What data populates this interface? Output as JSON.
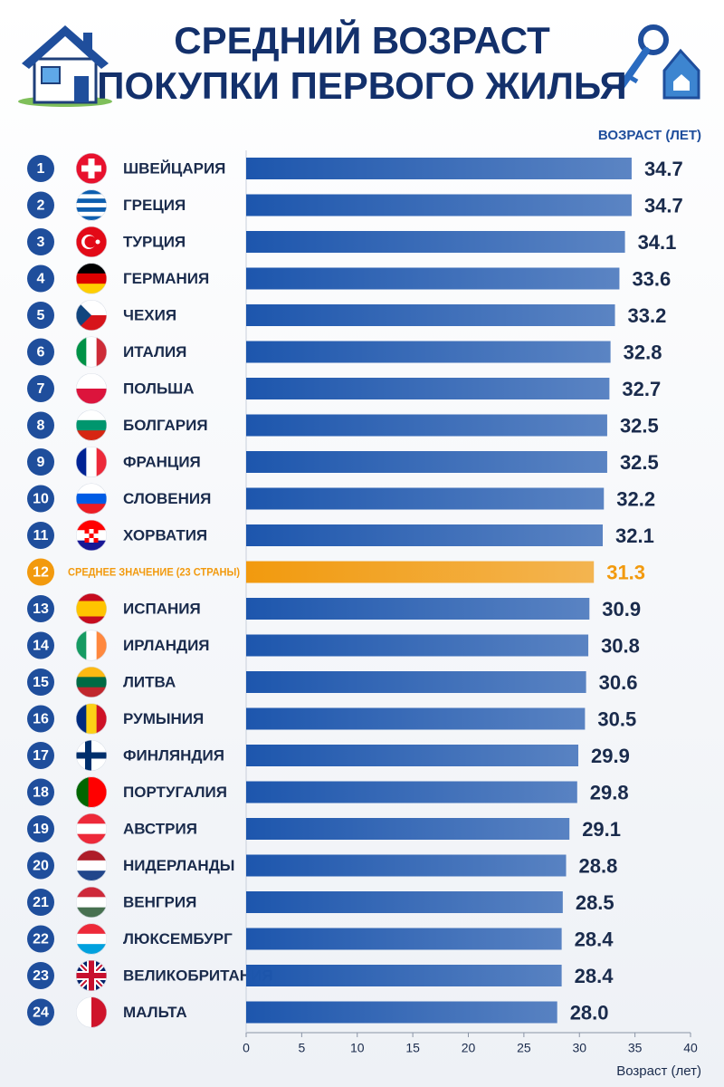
{
  "chart_data": {
    "type": "bar",
    "title": [
      "СРЕДНИЙ ВОЗРАСТ",
      "ПОКУПКИ ПЕРВОГО ЖИЛЬЯ"
    ],
    "value_axis_title": "ВОЗРАСТ (ЛЕТ)",
    "x_label": "Возраст (лет)",
    "ranks": [
      1,
      2,
      3,
      4,
      5,
      6,
      7,
      8,
      9,
      10,
      11,
      12,
      13,
      14,
      15,
      16,
      17,
      18,
      19,
      20,
      21,
      22,
      23,
      24
    ],
    "categories": [
      "ШВЕЙЦАРИЯ",
      "ГРЕЦИЯ",
      "ТУРЦИЯ",
      "ГЕРМАНИЯ",
      "ЧЕХИЯ",
      "ИТАЛИЯ",
      "ПОЛЬША",
      "БОЛГАРИЯ",
      "ФРАНЦИЯ",
      "СЛОВЕНИЯ",
      "ХОРВАТИЯ",
      "СРЕДНЕЕ ЗНАЧЕНИЕ (23 СТРАНЫ)",
      "ИСПАНИЯ",
      "ИРЛАНДИЯ",
      "ЛИТВА",
      "РУМЫНИЯ",
      "ФИНЛЯНДИЯ",
      "ПОРТУГАЛИЯ",
      "АВСТРИЯ",
      "НИДЕРЛАНДЫ",
      "ВЕНГРИЯ",
      "ЛЮКСЕМБУРГ",
      "ВЕЛИКОБРИТАНИЯ",
      "МАЛЬТА"
    ],
    "values": [
      34.7,
      34.7,
      34.1,
      33.6,
      33.2,
      32.8,
      32.7,
      32.5,
      32.5,
      32.2,
      32.1,
      31.3,
      30.9,
      30.8,
      30.6,
      30.5,
      29.9,
      29.8,
      29.1,
      28.8,
      28.5,
      28.4,
      28.4,
      28.0
    ],
    "value_labels": [
      "34.7",
      "34.7",
      "34.1",
      "33.6",
      "33.2",
      "32.8",
      "32.7",
      "32.5",
      "32.5",
      "32.2",
      "32.1",
      "31.3",
      "30.9",
      "30.8",
      "30.6",
      "30.5",
      "29.9",
      "29.8",
      "29.1",
      "28.8",
      "28.5",
      "28.4",
      "28.4",
      "28.0"
    ],
    "colors": [
      "#1d56ad",
      "#1d56ad",
      "#1d56ad",
      "#1d56ad",
      "#1d56ad",
      "#1d56ad",
      "#1d56ad",
      "#1d56ad",
      "#1d56ad",
      "#1d56ad",
      "#1d56ad",
      "#f29a0e",
      "#1d56ad",
      "#1d56ad",
      "#1d56ad",
      "#1d56ad",
      "#1d56ad",
      "#1d56ad",
      "#1d56ad",
      "#1d56ad",
      "#1d56ad",
      "#1d56ad",
      "#1d56ad",
      "#1d56ad"
    ],
    "xlim": [
      0,
      40
    ],
    "xticks": [
      0,
      5,
      10,
      15,
      20,
      25,
      30,
      35,
      40
    ]
  }
}
